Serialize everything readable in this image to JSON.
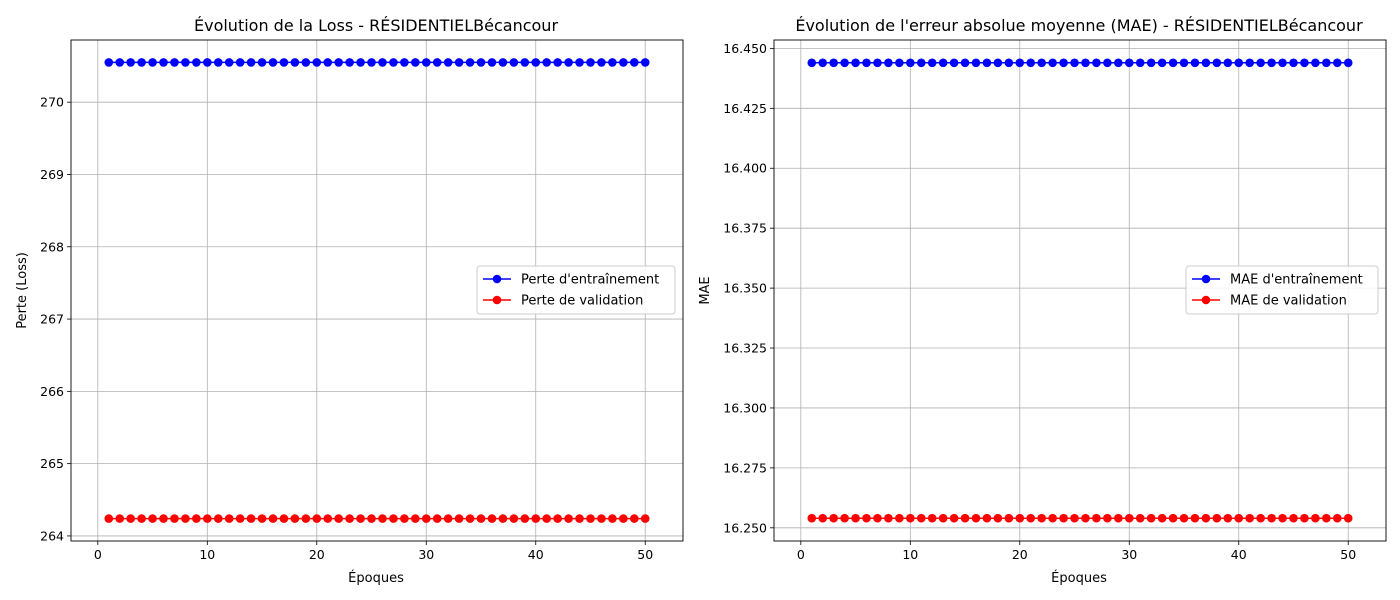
{
  "chart_data": [
    {
      "type": "line",
      "title": "Évolution de la Loss - RÉSIDENTIELBécancour",
      "xlabel": "Époques",
      "ylabel": "Perte (Loss)",
      "xlim": [
        -2.45,
        53.45
      ],
      "ylim": [
        263.93,
        270.86
      ],
      "xticks": [
        0,
        10,
        20,
        30,
        40,
        50
      ],
      "yticks": [
        264,
        265,
        266,
        267,
        268,
        269,
        270
      ],
      "ytick_labels": [
        "264",
        "265",
        "266",
        "267",
        "268",
        "269",
        "270"
      ],
      "grid": true,
      "legend_position": "center-right",
      "series": [
        {
          "name": "Perte d'entraînement",
          "color": "#0000ff",
          "marker": "circle",
          "x_start": 1,
          "x_end": 50,
          "value": 270.55
        },
        {
          "name": "Perte de validation",
          "color": "#ff0000",
          "marker": "circle",
          "x_start": 1,
          "x_end": 50,
          "value": 264.24
        }
      ]
    },
    {
      "type": "line",
      "title": "Évolution de l'erreur absolue moyenne (MAE) - RÉSIDENTIELBécancour",
      "xlabel": "Époques",
      "ylabel": "MAE",
      "xlim": [
        -2.45,
        53.45
      ],
      "ylim": [
        16.2445,
        16.4535
      ],
      "xticks": [
        0,
        10,
        20,
        30,
        40,
        50
      ],
      "yticks": [
        16.25,
        16.275,
        16.3,
        16.325,
        16.35,
        16.375,
        16.4,
        16.425,
        16.45
      ],
      "ytick_labels": [
        "16.250",
        "16.275",
        "16.300",
        "16.325",
        "16.350",
        "16.375",
        "16.400",
        "16.425",
        "16.450"
      ],
      "grid": true,
      "legend_position": "center-right",
      "series": [
        {
          "name": "MAE d'entraînement",
          "color": "#0000ff",
          "marker": "circle",
          "x_start": 1,
          "x_end": 50,
          "value": 16.444
        },
        {
          "name": "MAE de validation",
          "color": "#ff0000",
          "marker": "circle",
          "x_start": 1,
          "x_end": 50,
          "value": 16.254
        }
      ]
    }
  ]
}
